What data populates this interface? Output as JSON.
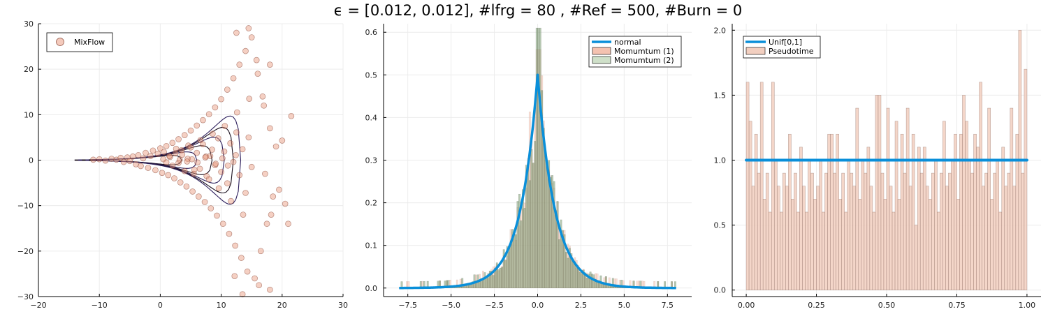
{
  "figure": {
    "title": "ϵ = [0.012, 0.012], #lfrg = 80 , #Ref = 500, #Burn = 0"
  },
  "colors": {
    "mixflow": "#e9967a",
    "mixflow_edge": "#8b4a3a",
    "contour": "#1a0f1e",
    "normal": "#0a8fd9",
    "momentum1": "#f4c2b0",
    "momentum2": "#7a9a72",
    "overlap": "#5a6040",
    "pseudotime": "#f2cfc0",
    "uniform": "#0a8fd9",
    "grid": "#ececec"
  },
  "chart_data": [
    {
      "type": "scatter",
      "title": "",
      "xlabel": "",
      "ylabel": "",
      "xlim": [
        -20,
        30
      ],
      "ylim": [
        -30,
        30
      ],
      "xticks": [
        "−20",
        "−10",
        "0",
        "10",
        "20",
        "30"
      ],
      "yticks": [
        "−30",
        "−20",
        "−10",
        "0",
        "10",
        "20",
        "30"
      ],
      "grid": true,
      "legend_position": "top-left",
      "series": [
        {
          "name": "MixFlow",
          "points": [
            [
              -11,
              0.1
            ],
            [
              -10,
              0.2
            ],
            [
              -9,
              -0.1
            ],
            [
              -8,
              0.3
            ],
            [
              -7.2,
              0.1
            ],
            [
              -6.5,
              0.5
            ],
            [
              -6,
              -0.4
            ],
            [
              -5.4,
              0.6
            ],
            [
              -5,
              -0.2
            ],
            [
              -4.5,
              0.8
            ],
            [
              -4,
              -0.9
            ],
            [
              -3.6,
              1.1
            ],
            [
              -3.2,
              -1.3
            ],
            [
              -2.8,
              0.4
            ],
            [
              -2.4,
              1.6
            ],
            [
              -2,
              -1.7
            ],
            [
              -1.6,
              0.9
            ],
            [
              -1.2,
              2.1
            ],
            [
              -0.8,
              -2.2
            ],
            [
              -0.4,
              1.4
            ],
            [
              0,
              2.6
            ],
            [
              0.3,
              -2.8
            ],
            [
              0.6,
              1.8
            ],
            [
              1,
              3.1
            ],
            [
              1.3,
              -3.3
            ],
            [
              1.6,
              0.7
            ],
            [
              2,
              3.8
            ],
            [
              2.3,
              -4
            ],
            [
              2.6,
              2.5
            ],
            [
              3,
              4.6
            ],
            [
              3.3,
              -4.9
            ],
            [
              3.6,
              1.2
            ],
            [
              4,
              5.5
            ],
            [
              4.3,
              -5.8
            ],
            [
              4.6,
              3.2
            ],
            [
              5,
              6.5
            ],
            [
              5.3,
              -6.9
            ],
            [
              5.6,
              -2.1
            ],
            [
              6,
              7.6
            ],
            [
              6.3,
              -8
            ],
            [
              6.6,
              4.4
            ],
            [
              7,
              8.8
            ],
            [
              7.3,
              -9.2
            ],
            [
              7.6,
              -3.5
            ],
            [
              8,
              10.1
            ],
            [
              8.3,
              -10.6
            ],
            [
              8.6,
              5.8
            ],
            [
              9,
              11.6
            ],
            [
              9.3,
              -12.2
            ],
            [
              9.6,
              -6.2
            ],
            [
              10,
              13.4
            ],
            [
              10.3,
              -14
            ],
            [
              10.6,
              7.5
            ],
            [
              11,
              15.5
            ],
            [
              11.3,
              -16.2
            ],
            [
              11.6,
              -9
            ],
            [
              12,
              18
            ],
            [
              12.3,
              -18.8
            ],
            [
              12.6,
              10.5
            ],
            [
              13,
              21
            ],
            [
              13.3,
              -21.5
            ],
            [
              13.6,
              -12
            ],
            [
              14,
              24
            ],
            [
              14.3,
              -24.5
            ],
            [
              14.6,
              13.5
            ],
            [
              15,
              27
            ],
            [
              12.5,
              28
            ],
            [
              14.5,
              29
            ],
            [
              13.5,
              -29.5
            ],
            [
              15.5,
              -26
            ],
            [
              16,
              19
            ],
            [
              16.5,
              -20
            ],
            [
              17,
              12
            ],
            [
              17.5,
              -14
            ],
            [
              18,
              7
            ],
            [
              18.5,
              -8
            ],
            [
              19,
              3
            ],
            [
              19.5,
              -6.5
            ],
            [
              20,
              4.3
            ],
            [
              20.5,
              -9.6
            ],
            [
              21,
              -14
            ],
            [
              21.5,
              9.7
            ],
            [
              16.8,
              14
            ],
            [
              17.2,
              -3
            ],
            [
              18.2,
              -12
            ],
            [
              15.8,
              22
            ],
            [
              18,
              -28.5
            ],
            [
              18,
              21
            ],
            [
              16.2,
              -27.5
            ],
            [
              12.2,
              -25.5
            ],
            [
              0.5,
              0.2
            ],
            [
              1,
              -0.5
            ],
            [
              1.5,
              0.9
            ],
            [
              2,
              -1.2
            ],
            [
              2.5,
              1.5
            ],
            [
              3,
              -0.6
            ],
            [
              3.5,
              2.2
            ],
            [
              4,
              -2.4
            ],
            [
              4.5,
              0.3
            ],
            [
              5,
              2.8
            ],
            [
              5.5,
              -3
            ],
            [
              6,
              1.6
            ],
            [
              6.5,
              -1.9
            ],
            [
              7,
              3.5
            ],
            [
              7.5,
              0.8
            ],
            [
              8,
              -4.2
            ],
            [
              8.5,
              2.3
            ],
            [
              9,
              -1.1
            ],
            [
              9.5,
              4.8
            ],
            [
              10,
              -2.6
            ],
            [
              10.5,
              1.9
            ],
            [
              11,
              -5.1
            ],
            [
              11.5,
              3.7
            ],
            [
              12,
              -0.4
            ],
            [
              12.5,
              6.1
            ],
            [
              13,
              -3.3
            ],
            [
              13.5,
              2.4
            ],
            [
              14,
              -7.2
            ],
            [
              14.5,
              5
            ],
            [
              15,
              -1.5
            ],
            [
              3.2,
              0.1
            ],
            [
              4.4,
              -0.3
            ],
            [
              5.2,
              0.2
            ],
            [
              6.1,
              -0.5
            ],
            [
              7.4,
              0.6
            ],
            [
              8.2,
              0.9
            ],
            [
              9.1,
              -0.8
            ],
            [
              10.2,
              0.4
            ],
            [
              11.1,
              -1.2
            ],
            [
              12.4,
              1.1
            ]
          ]
        }
      ]
    },
    {
      "type": "histogram",
      "title": "",
      "xlabel": "",
      "ylabel": "",
      "xlim": [
        -8.9,
        8.9
      ],
      "ylim": [
        -0.02,
        0.62
      ],
      "xticks": [
        "−7.5",
        "−5.0",
        "−2.5",
        "0.0",
        "2.5",
        "5.0",
        "7.5"
      ],
      "yticks": [
        "0.0",
        "0.1",
        "0.2",
        "0.3",
        "0.4",
        "0.5",
        "0.6"
      ],
      "grid": true,
      "legend_position": "top-right",
      "series": [
        {
          "name": "normal",
          "type": "line",
          "function": "laplace",
          "scale": 1.0,
          "peak": 0.5,
          "x_range": [
            -8,
            8
          ]
        },
        {
          "name": "Momumtum (1)",
          "type": "histogram",
          "bin_width": 0.1,
          "density": "laplace",
          "peak_observed": 0.56,
          "range": [
            -7.9,
            7.9
          ]
        },
        {
          "name": "Momumtum (2)",
          "type": "histogram",
          "bin_width": 0.1,
          "density": "laplace",
          "peak_observed": 0.61,
          "range": [
            -7.9,
            7.9
          ]
        }
      ]
    },
    {
      "type": "histogram",
      "title": "",
      "xlabel": "",
      "ylabel": "",
      "xlim": [
        -0.05,
        1.05
      ],
      "ylim": [
        -0.05,
        2.05
      ],
      "xticks": [
        "0.00",
        "0.25",
        "0.50",
        "0.75",
        "1.00"
      ],
      "yticks": [
        "0.0",
        "0.5",
        "1.0",
        "1.5",
        "2.0"
      ],
      "grid": true,
      "legend_position": "top-left",
      "series": [
        {
          "name": "Unif[0,1]",
          "type": "line",
          "x": [
            0,
            1
          ],
          "y": [
            1,
            1
          ]
        },
        {
          "name": "Pseudotime",
          "type": "histogram",
          "bin_width": 0.01,
          "values": [
            1.6,
            1.3,
            0.8,
            1.2,
            0.9,
            1.6,
            0.7,
            0.9,
            0.6,
            1.6,
            1.0,
            0.8,
            0.6,
            0.9,
            0.8,
            1.2,
            0.7,
            0.9,
            0.6,
            1.1,
            0.8,
            0.6,
            1.0,
            0.9,
            0.7,
            0.8,
            1.0,
            0.6,
            0.9,
            1.2,
            1.2,
            0.9,
            1.2,
            0.7,
            0.9,
            0.6,
            1.0,
            0.9,
            0.8,
            1.4,
            0.7,
            1.0,
            0.9,
            1.1,
            0.8,
            0.6,
            1.5,
            1.5,
            0.9,
            0.7,
            1.4,
            0.8,
            0.6,
            1.3,
            0.7,
            1.2,
            0.9,
            1.4,
            0.8,
            1.2,
            0.5,
            1.1,
            0.9,
            1.1,
            0.8,
            0.7,
            0.9,
            1.0,
            0.6,
            0.9,
            1.3,
            0.8,
            0.9,
            1.0,
            1.2,
            0.7,
            1.2,
            1.5,
            1.3,
            1.0,
            0.9,
            1.2,
            1.1,
            1.6,
            0.8,
            0.9,
            1.4,
            0.7,
            0.9,
            1.0,
            0.6,
            1.1,
            0.8,
            0.9,
            1.4,
            0.8,
            1.2,
            2.0,
            0.9,
            1.7
          ]
        }
      ]
    }
  ]
}
